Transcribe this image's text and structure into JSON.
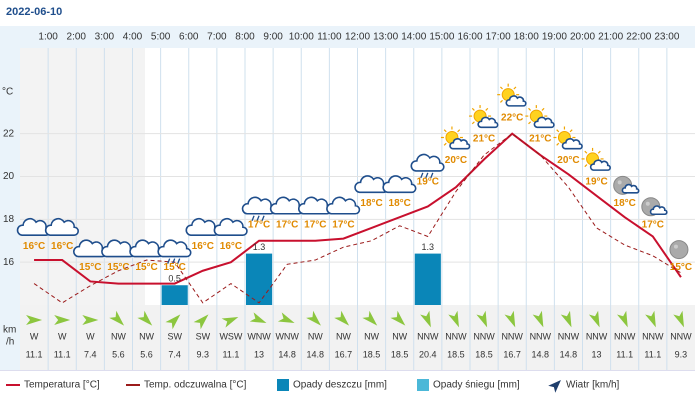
{
  "chart_data": {
    "type": "weather",
    "title": "2022-06-10",
    "hour_labels": [
      "1:00",
      "2:00",
      "3:00",
      "4:00",
      "5:00",
      "6:00",
      "7:00",
      "8:00",
      "9:00",
      "10:00",
      "11:00",
      "12:00",
      "13:00",
      "14:00",
      "15:00",
      "16:00",
      "17:00",
      "18:00",
      "19:00",
      "20:00",
      "21:00",
      "22:00",
      "23:00"
    ],
    "y_unit": "°C",
    "ylim": [
      14,
      26
    ],
    "yticks": [
      16,
      18,
      20,
      22
    ],
    "grid": true,
    "series": [
      {
        "name": "Temperatura [°C]",
        "color": "#c8102e",
        "values": [
          16.1,
          16.1,
          15.1,
          15.0,
          15.0,
          15.0,
          15.6,
          16.0,
          17.0,
          17.0,
          17.0,
          17.1,
          17.6,
          18.1,
          18.6,
          19.5,
          20.8,
          22.0,
          21.0,
          20.1,
          19.1,
          18.1,
          17.2,
          15.3
        ],
        "value_labels": [
          "16°C",
          "16°C",
          "15°C",
          "15°C",
          "15°C",
          "15°C",
          "16°C",
          "16°C",
          "17°C",
          "17°C",
          "17°C",
          "17°C",
          "18°C",
          "18°C",
          "19°C",
          "20°C",
          "21°C",
          "22°C",
          "21°C",
          "20°C",
          "19°C",
          "18°C",
          "17°C",
          "15°C"
        ]
      },
      {
        "name": "Temp. odczuwalna [°C]",
        "color": "#9b1b1b",
        "values": [
          15.0,
          14.1,
          14.9,
          15.6,
          16.1,
          16.0,
          14.1,
          15.0,
          14.1,
          15.9,
          16.1,
          16.7,
          17.0,
          17.7,
          17.2,
          19.3,
          21.0,
          22.0,
          21.0,
          19.5,
          17.6,
          16.8,
          16.3,
          15.5
        ]
      },
      {
        "name": "Opady deszczu [mm]",
        "color": "#0a86b8",
        "values": [
          null,
          null,
          null,
          null,
          null,
          0.5,
          null,
          null,
          1.3,
          null,
          null,
          null,
          null,
          null,
          1.3,
          null,
          null,
          null,
          null,
          null,
          null,
          null,
          null,
          null
        ]
      },
      {
        "name": "Opady śniegu [mm]",
        "color": "#4bb8d8",
        "values": []
      }
    ],
    "precip_ylim": [
      0,
      6.5
    ],
    "wind": {
      "name": "Wiatr [km/h]",
      "unit_lines": [
        "km",
        "/h"
      ],
      "directions": [
        "W",
        "W",
        "W",
        "NW",
        "NW",
        "SW",
        "SW",
        "WSW",
        "WNW",
        "WNW",
        "NW",
        "NW",
        "NW",
        "NW",
        "NNW",
        "NNW",
        "NNW",
        "NNW",
        "NNW",
        "NNW",
        "NNW",
        "NNW",
        "NNW",
        "NNW"
      ],
      "values": [
        11.1,
        11.1,
        7.4,
        5.6,
        5.6,
        7.4,
        9.3,
        11.1,
        13,
        14.8,
        14.8,
        16.7,
        18.5,
        18.5,
        20.4,
        18.5,
        18.5,
        16.7,
        14.8,
        14.8,
        13,
        11.1,
        11.1,
        9.3
      ]
    }
  }
}
